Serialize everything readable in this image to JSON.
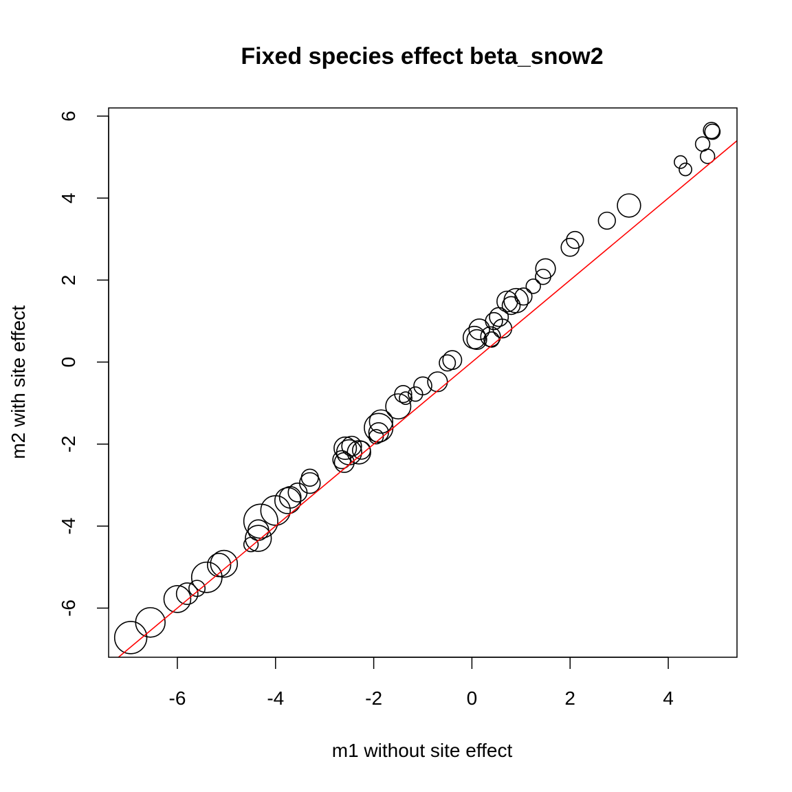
{
  "chart_data": {
    "type": "scatter",
    "title": "Fixed species effect beta_snow2",
    "xlabel": "m1 without site effect",
    "ylabel": "m2 with site effect",
    "xlim": [
      -7.4,
      5.4
    ],
    "ylim": [
      -7.2,
      6.2
    ],
    "xticks": [
      -6,
      -4,
      -2,
      0,
      2,
      4
    ],
    "yticks": [
      -6,
      -4,
      -2,
      0,
      2,
      4,
      6
    ],
    "grid": false,
    "reference_line": {
      "intercept": 0,
      "slope": 1,
      "color": "#ff0000"
    },
    "marker": "open-circle",
    "point_size_varies": true,
    "points": [
      {
        "x": -6.95,
        "y": -6.72,
        "s": 1.8
      },
      {
        "x": -6.55,
        "y": -6.35,
        "s": 1.65
      },
      {
        "x": -6.0,
        "y": -5.78,
        "s": 1.5
      },
      {
        "x": -5.8,
        "y": -5.65,
        "s": 1.2
      },
      {
        "x": -5.6,
        "y": -5.52,
        "s": 0.9
      },
      {
        "x": -5.4,
        "y": -5.25,
        "s": 1.7
      },
      {
        "x": -5.15,
        "y": -4.95,
        "s": 1.3
      },
      {
        "x": -5.05,
        "y": -4.92,
        "s": 1.5
      },
      {
        "x": -4.5,
        "y": -4.45,
        "s": 0.8
      },
      {
        "x": -4.35,
        "y": -4.3,
        "s": 1.45
      },
      {
        "x": -4.35,
        "y": -4.1,
        "s": 1.15
      },
      {
        "x": -4.3,
        "y": -3.88,
        "s": 1.9
      },
      {
        "x": -4.0,
        "y": -3.62,
        "s": 1.65
      },
      {
        "x": -3.75,
        "y": -3.38,
        "s": 1.45
      },
      {
        "x": -3.7,
        "y": -3.3,
        "s": 1.2
      },
      {
        "x": -3.55,
        "y": -3.18,
        "s": 1.05
      },
      {
        "x": -3.3,
        "y": -2.95,
        "s": 1.15
      },
      {
        "x": -3.3,
        "y": -2.82,
        "s": 0.95
      },
      {
        "x": -2.65,
        "y": -2.38,
        "s": 1.0
      },
      {
        "x": -2.6,
        "y": -2.45,
        "s": 1.1
      },
      {
        "x": -2.58,
        "y": -2.1,
        "s": 1.25
      },
      {
        "x": -2.5,
        "y": -2.2,
        "s": 1.4
      },
      {
        "x": -2.45,
        "y": -2.05,
        "s": 1.1
      },
      {
        "x": -2.3,
        "y": -2.2,
        "s": 1.3
      },
      {
        "x": -2.25,
        "y": -2.15,
        "s": 1.0
      },
      {
        "x": -1.95,
        "y": -1.82,
        "s": 0.8
      },
      {
        "x": -1.9,
        "y": -1.72,
        "s": 1.1
      },
      {
        "x": -1.9,
        "y": -1.6,
        "s": 1.6
      },
      {
        "x": -1.85,
        "y": -1.45,
        "s": 1.3
      },
      {
        "x": -1.5,
        "y": -1.08,
        "s": 1.4
      },
      {
        "x": -1.4,
        "y": -0.78,
        "s": 0.95
      },
      {
        "x": -1.35,
        "y": -0.88,
        "s": 0.7
      },
      {
        "x": -1.15,
        "y": -0.78,
        "s": 0.8
      },
      {
        "x": -1.0,
        "y": -0.58,
        "s": 1.0
      },
      {
        "x": -0.7,
        "y": -0.48,
        "s": 1.1
      },
      {
        "x": -0.5,
        "y": -0.02,
        "s": 0.9
      },
      {
        "x": -0.4,
        "y": 0.05,
        "s": 1.05
      },
      {
        "x": 0.05,
        "y": 0.6,
        "s": 1.25
      },
      {
        "x": 0.1,
        "y": 0.55,
        "s": 1.1
      },
      {
        "x": 0.15,
        "y": 0.8,
        "s": 1.15
      },
      {
        "x": 0.38,
        "y": 0.62,
        "s": 1.1
      },
      {
        "x": 0.4,
        "y": 0.55,
        "s": 0.85
      },
      {
        "x": 0.45,
        "y": 1.0,
        "s": 0.95
      },
      {
        "x": 0.55,
        "y": 1.1,
        "s": 1.05
      },
      {
        "x": 0.62,
        "y": 0.82,
        "s": 1.05
      },
      {
        "x": 0.72,
        "y": 1.48,
        "s": 1.15
      },
      {
        "x": 0.8,
        "y": 1.38,
        "s": 1.0
      },
      {
        "x": 0.9,
        "y": 1.5,
        "s": 1.35
      },
      {
        "x": 1.05,
        "y": 1.6,
        "s": 0.95
      },
      {
        "x": 1.25,
        "y": 1.85,
        "s": 0.8
      },
      {
        "x": 1.45,
        "y": 2.08,
        "s": 0.85
      },
      {
        "x": 1.5,
        "y": 2.28,
        "s": 1.1
      },
      {
        "x": 2.0,
        "y": 2.8,
        "s": 1.0
      },
      {
        "x": 2.1,
        "y": 2.98,
        "s": 0.95
      },
      {
        "x": 2.75,
        "y": 3.45,
        "s": 0.95
      },
      {
        "x": 3.2,
        "y": 3.82,
        "s": 1.3
      },
      {
        "x": 4.25,
        "y": 4.88,
        "s": 0.7
      },
      {
        "x": 4.35,
        "y": 4.7,
        "s": 0.7
      },
      {
        "x": 4.7,
        "y": 5.32,
        "s": 0.8
      },
      {
        "x": 4.8,
        "y": 5.02,
        "s": 0.8
      },
      {
        "x": 4.88,
        "y": 5.65,
        "s": 0.9
      },
      {
        "x": 4.9,
        "y": 5.62,
        "s": 0.85
      }
    ]
  }
}
